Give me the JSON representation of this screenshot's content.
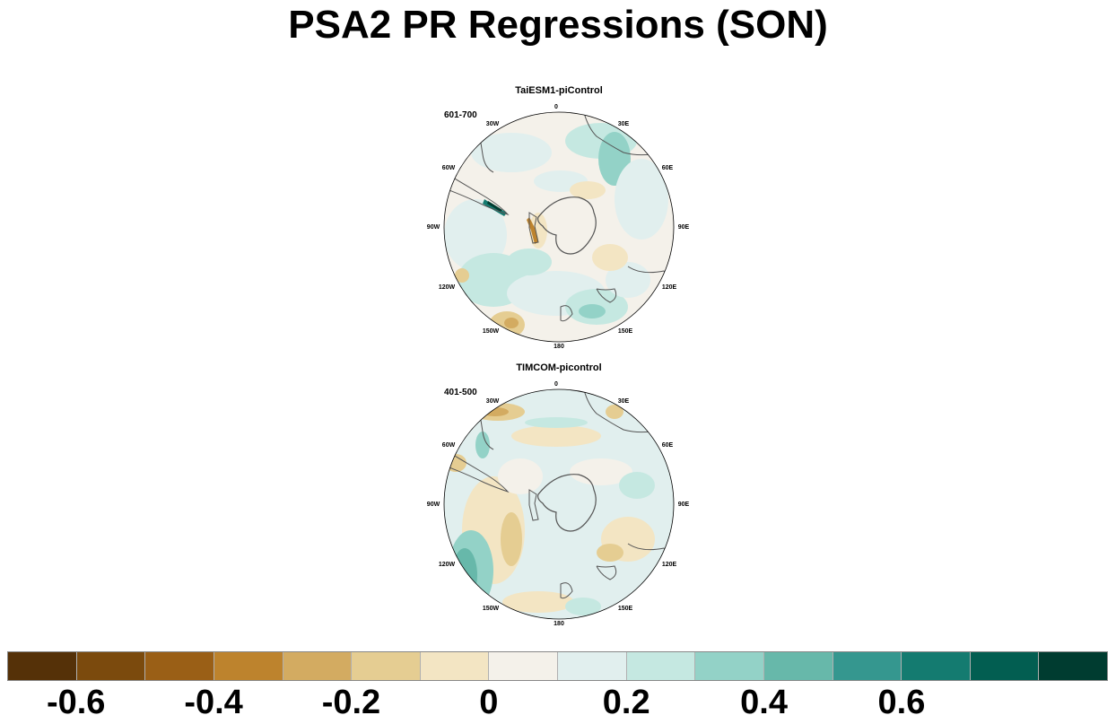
{
  "title": "PSA2 PR Regressions (SON)",
  "panels": [
    {
      "title": "TaiESM1-piControl",
      "period": "601-700"
    },
    {
      "title": "TIMCOM-picontrol",
      "period": "401-500"
    }
  ],
  "lon_labels": {
    "l0": "0",
    "l30e": "30E",
    "l60e": "60E",
    "l90e": "90E",
    "l120e": "120E",
    "l150e": "150E",
    "l180": "180",
    "l150w": "150W",
    "l120w": "120W",
    "l90w": "90W",
    "l60w": "60W",
    "l30w": "30W"
  },
  "colorbar": {
    "colors": [
      "#553108",
      "#7b4a0d",
      "#9a5f16",
      "#bd832d",
      "#d3ab61",
      "#e5cd92",
      "#f3e5c3",
      "#f4f1ea",
      "#e1efee",
      "#c5e8e1",
      "#93d2c7",
      "#67b8aa",
      "#35978f",
      "#147b70",
      "#025e51",
      "#003c30"
    ],
    "ticks": [
      "-0.6",
      "-0.4",
      "-0.2",
      "0",
      "0.2",
      "0.4",
      "0.6"
    ]
  }
}
